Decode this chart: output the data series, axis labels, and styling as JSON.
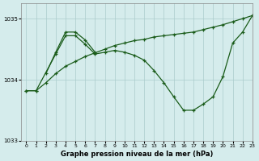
{
  "title": "Graphe pression niveau de la mer (hPa)",
  "background_color": "#d5ecec",
  "grid_color": "#aacccc",
  "line_color": "#1a5c1a",
  "xlim": [
    -0.5,
    23
  ],
  "ylim": [
    1033.0,
    1035.25
  ],
  "yticks": [
    1033,
    1034,
    1035
  ],
  "xticks": [
    0,
    1,
    2,
    3,
    4,
    5,
    6,
    7,
    8,
    9,
    10,
    11,
    12,
    13,
    14,
    15,
    16,
    17,
    18,
    19,
    20,
    21,
    22,
    23
  ],
  "series1_x": [
    0,
    1,
    2,
    3,
    4,
    5,
    6,
    7,
    8,
    9,
    10,
    11,
    12,
    13,
    14,
    15,
    16,
    17,
    18,
    19,
    20,
    21,
    22,
    23
  ],
  "series1_y": [
    1033.82,
    1033.82,
    1033.95,
    1034.1,
    1034.22,
    1034.3,
    1034.38,
    1034.44,
    1034.5,
    1034.56,
    1034.6,
    1034.64,
    1034.66,
    1034.7,
    1034.72,
    1034.74,
    1034.76,
    1034.78,
    1034.82,
    1034.86,
    1034.9,
    1034.95,
    1035.0,
    1035.05
  ],
  "series2_x": [
    0,
    1,
    3,
    4,
    5,
    6,
    7,
    8,
    9,
    10,
    11,
    12,
    13,
    14,
    15,
    16,
    17,
    18,
    19,
    20,
    21,
    22,
    23
  ],
  "series2_y": [
    1033.82,
    1033.82,
    1034.42,
    1034.72,
    1034.72,
    1034.58,
    1034.42,
    1034.45,
    1034.48,
    1034.45,
    1034.4,
    1034.32,
    1034.15,
    1033.95,
    1033.72,
    1033.5,
    1033.5,
    1033.6,
    1033.72,
    1034.05,
    1034.6,
    1034.78,
    1035.05
  ],
  "series3_x": [
    2,
    3,
    4,
    5,
    6,
    7
  ],
  "series3_y": [
    1034.1,
    1034.45,
    1034.78,
    1034.78,
    1034.65,
    1034.45
  ]
}
